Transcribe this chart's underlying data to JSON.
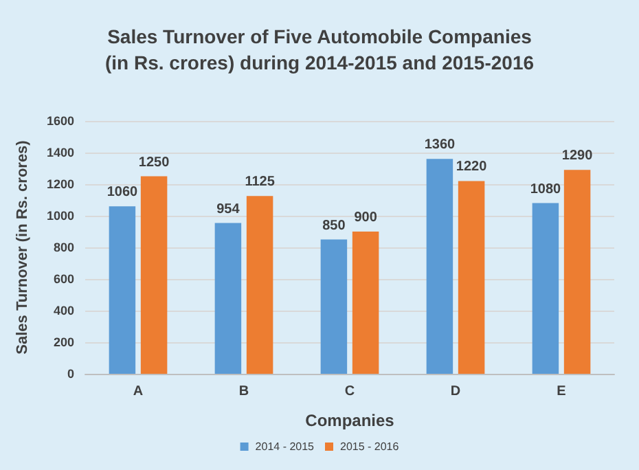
{
  "chart_data": {
    "type": "bar",
    "title": "Sales Turnover of Five Automobile Companies\n(in Rs. crores) during 2014-2015 and 2015-2016",
    "xlabel": "Companies",
    "ylabel": "Sales Turnover (in Rs. crores)",
    "categories": [
      "A",
      "B",
      "C",
      "D",
      "E"
    ],
    "series": [
      {
        "name": "2014 - 2015",
        "color": "#5b9bd5",
        "values": [
          1060,
          954,
          850,
          1360,
          1080
        ]
      },
      {
        "name": "2015 - 2016",
        "color": "#ed7d31",
        "values": [
          1250,
          1125,
          900,
          1220,
          1290
        ]
      }
    ],
    "ylim": [
      0,
      1600
    ],
    "yticks": [
      0,
      200,
      400,
      600,
      800,
      1000,
      1200,
      1400,
      1600
    ],
    "grid": "y",
    "legend": "bottom",
    "data_labels": true
  }
}
